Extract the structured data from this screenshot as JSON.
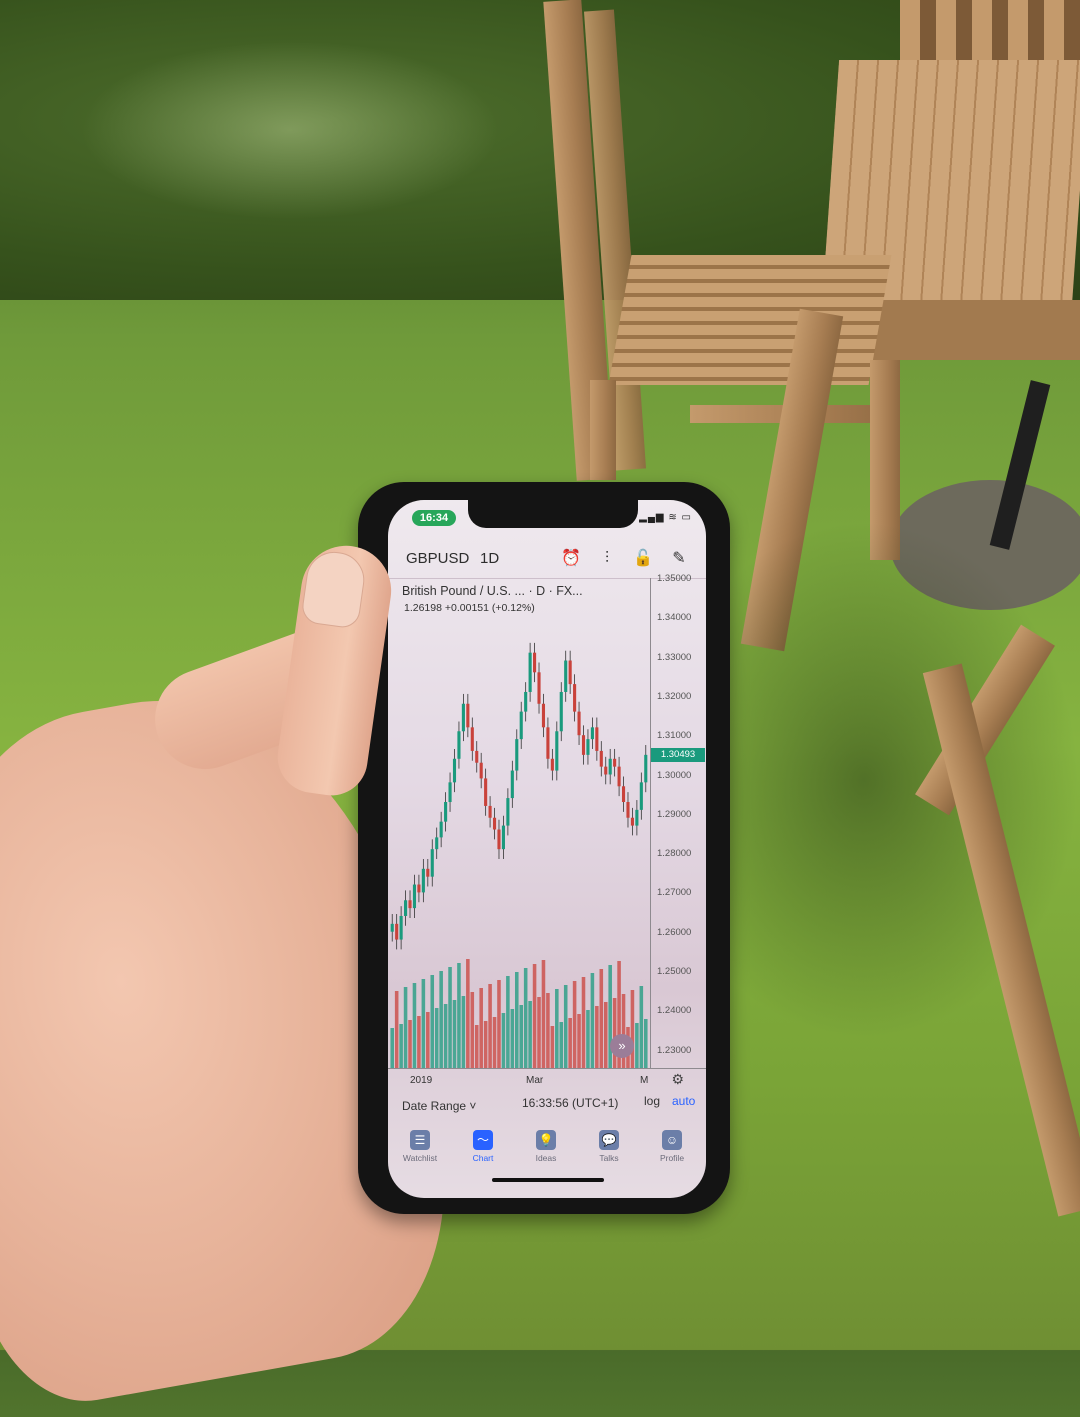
{
  "status_bar": {
    "time": "16:34",
    "icons": "▂▄▆ ≋ ▭"
  },
  "toolbar": {
    "symbol": "GBPUSD",
    "interval": "1D",
    "icons": [
      "alarm-icon",
      "indicators-icon",
      "lock-icon",
      "drawing-icon"
    ]
  },
  "legend": {
    "title": "British Pound / U.S. ...   · D · FX...",
    "values": "1.26198  +0.00151  (+0.12%)"
  },
  "price_axis": {
    "ticks": [
      "1.35000",
      "1.34000",
      "1.33000",
      "1.32000",
      "1.31000",
      "1.30000",
      "1.29000",
      "1.28000",
      "1.27000",
      "1.26000",
      "1.25000",
      "1.24000",
      "1.23000"
    ],
    "last_price": "1.30493"
  },
  "time_axis": {
    "labels": [
      "2019",
      "Mar",
      "M"
    ]
  },
  "bottom": {
    "date_range": "Date Range ˅",
    "clock": "16:33:56 (UTC+1)",
    "log": "log",
    "auto": "auto"
  },
  "tabs": [
    {
      "label": "Watchlist",
      "icon": "watchlist-icon",
      "active": false
    },
    {
      "label": "Chart",
      "icon": "chart-icon",
      "active": true
    },
    {
      "label": "Ideas",
      "icon": "ideas-icon",
      "active": false
    },
    {
      "label": "Talks",
      "icon": "talks-icon",
      "active": false
    },
    {
      "label": "Profile",
      "icon": "profile-icon",
      "active": false
    }
  ],
  "colors": {
    "up": "#1a9a7d",
    "down": "#c9423b",
    "accent": "#2962ff",
    "time_pill": "#27a65a"
  },
  "chart_data": {
    "type": "candlestick",
    "title": "British Pound / U.S. ...",
    "ylim": [
      1.23,
      1.35
    ],
    "closes": [
      1.262,
      1.258,
      1.264,
      1.268,
      1.266,
      1.272,
      1.27,
      1.276,
      1.274,
      1.281,
      1.284,
      1.288,
      1.293,
      1.298,
      1.304,
      1.311,
      1.318,
      1.312,
      1.306,
      1.303,
      1.299,
      1.292,
      1.289,
      1.286,
      1.281,
      1.287,
      1.294,
      1.301,
      1.309,
      1.316,
      1.321,
      1.331,
      1.326,
      1.318,
      1.312,
      1.304,
      1.301,
      1.311,
      1.321,
      1.329,
      1.323,
      1.316,
      1.31,
      1.305,
      1.309,
      1.312,
      1.306,
      1.302,
      1.3,
      1.304,
      1.302,
      1.297,
      1.293,
      1.289,
      1.287,
      1.291,
      1.298,
      1.305
    ]
  }
}
